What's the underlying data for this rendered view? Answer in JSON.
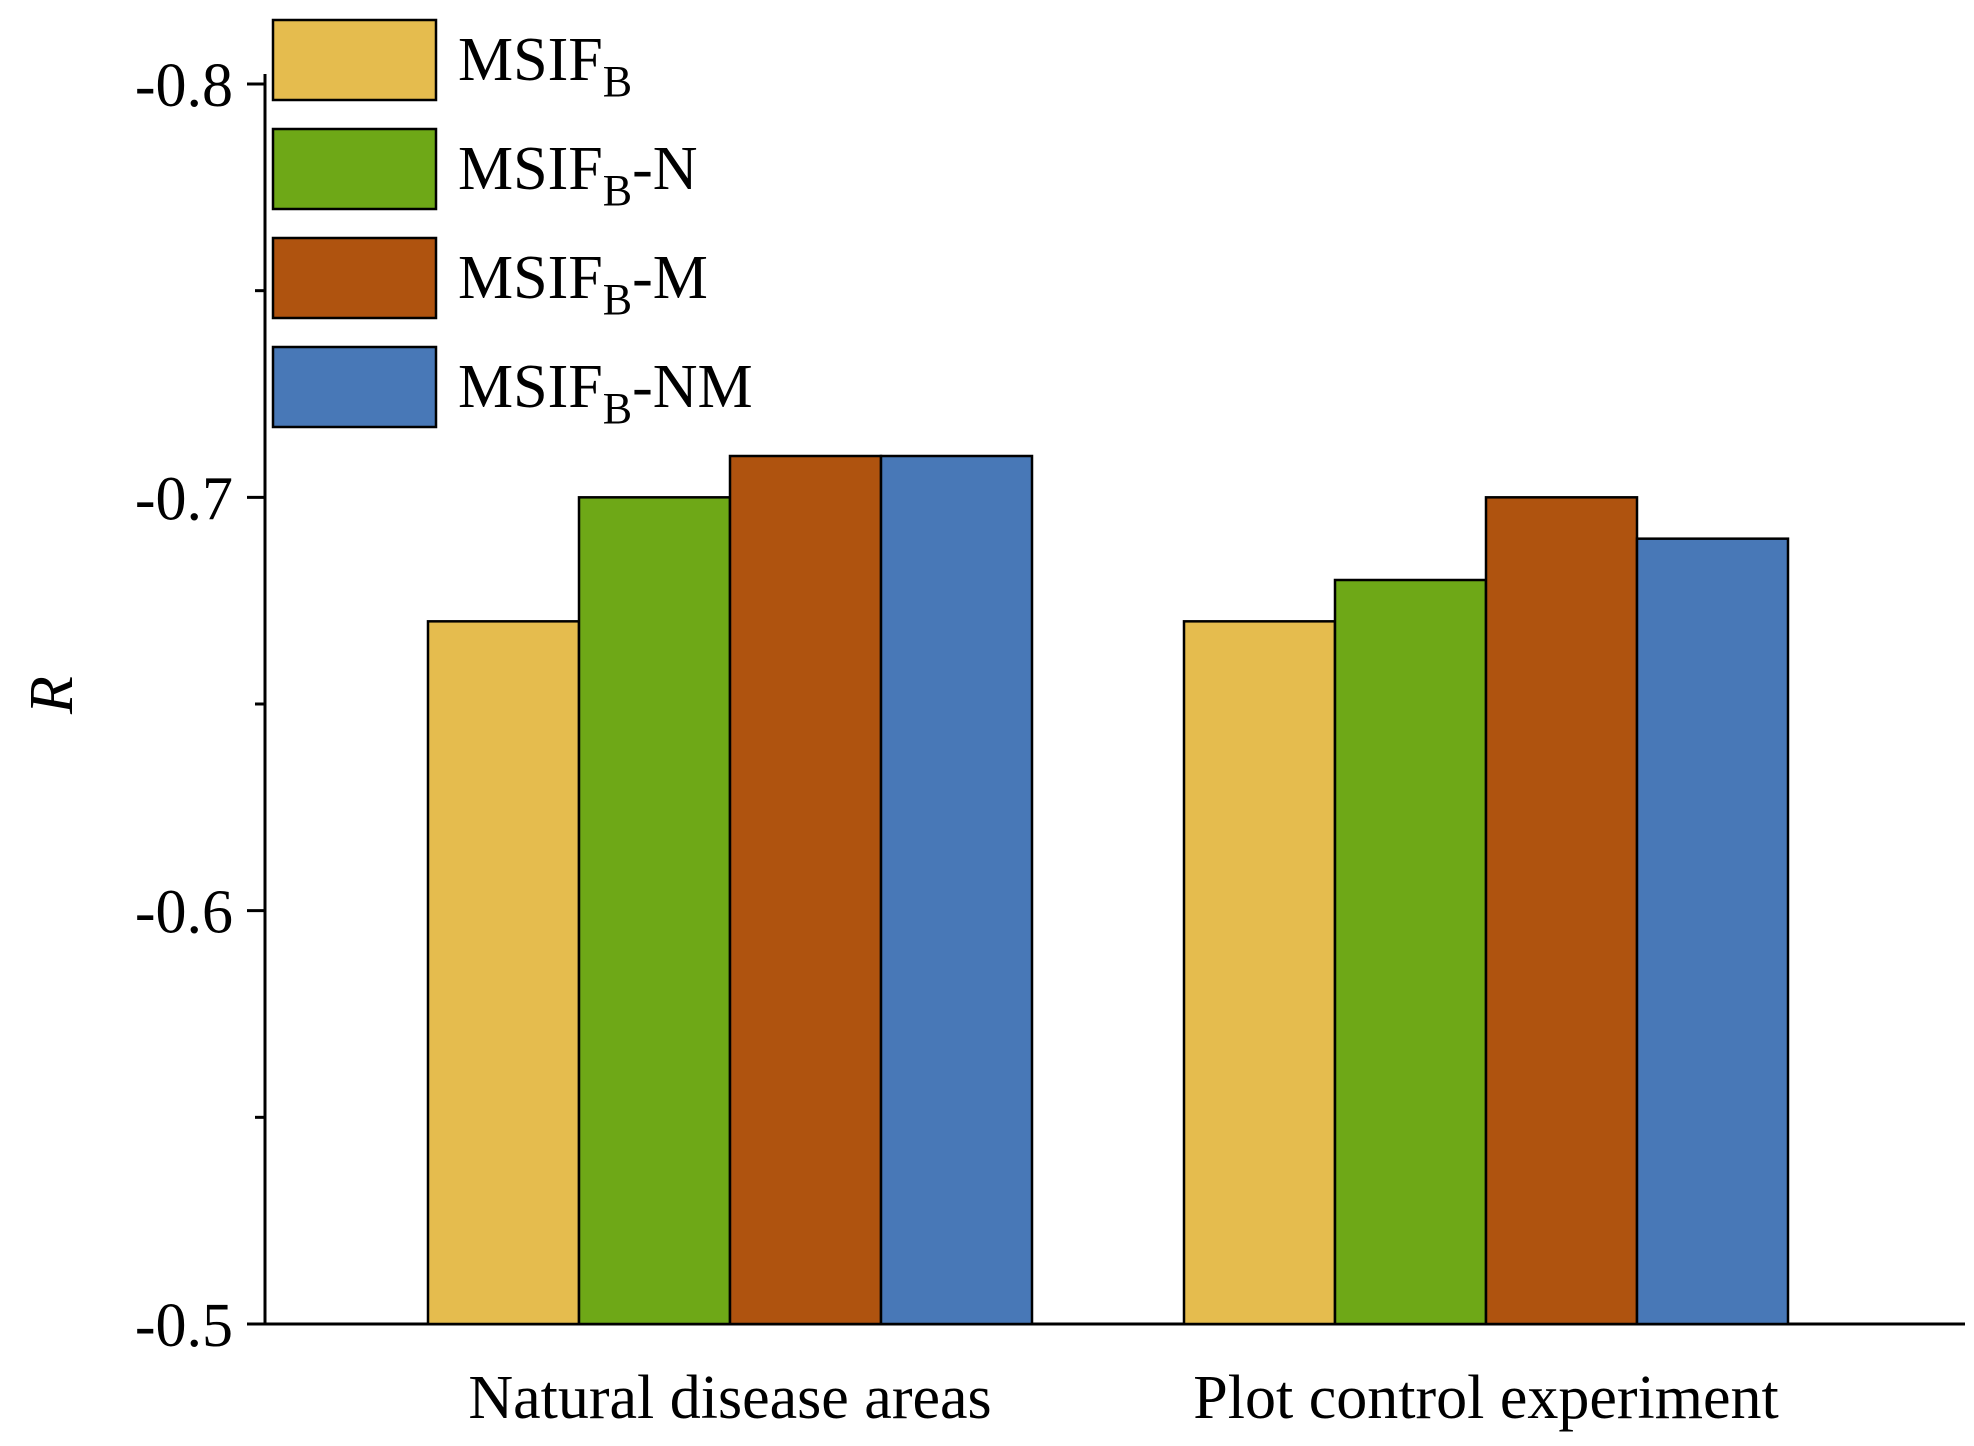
{
  "chart_data": {
    "type": "bar",
    "title": "",
    "xlabel": "",
    "ylabel": "R",
    "ylim": [
      -0.5,
      -0.8
    ],
    "yticks": [
      -0.8,
      -0.7,
      -0.6,
      -0.5
    ],
    "ytick_labels": [
      "-0.8",
      "-0.7",
      "-0.6",
      "-0.5"
    ],
    "y_inverted": true,
    "categories": [
      "Natural disease areas",
      "Plot control experiment"
    ],
    "series": [
      {
        "name": "MSIF",
        "sub": "B",
        "suffix": "",
        "color": "#E5BC4E",
        "values": [
          -0.67,
          -0.67
        ]
      },
      {
        "name": "MSIF",
        "sub": "B",
        "suffix": "-N",
        "color": "#6EA817",
        "values": [
          -0.7,
          -0.68
        ]
      },
      {
        "name": "MSIF",
        "sub": "B",
        "suffix": "-M",
        "color": "#AF530F",
        "values": [
          -0.71,
          -0.7
        ]
      },
      {
        "name": "MSIF",
        "sub": "B",
        "suffix": "-NM",
        "color": "#4878B7",
        "values": [
          -0.71,
          -0.69
        ]
      }
    ],
    "legend_position": "top-left",
    "grid": false
  }
}
